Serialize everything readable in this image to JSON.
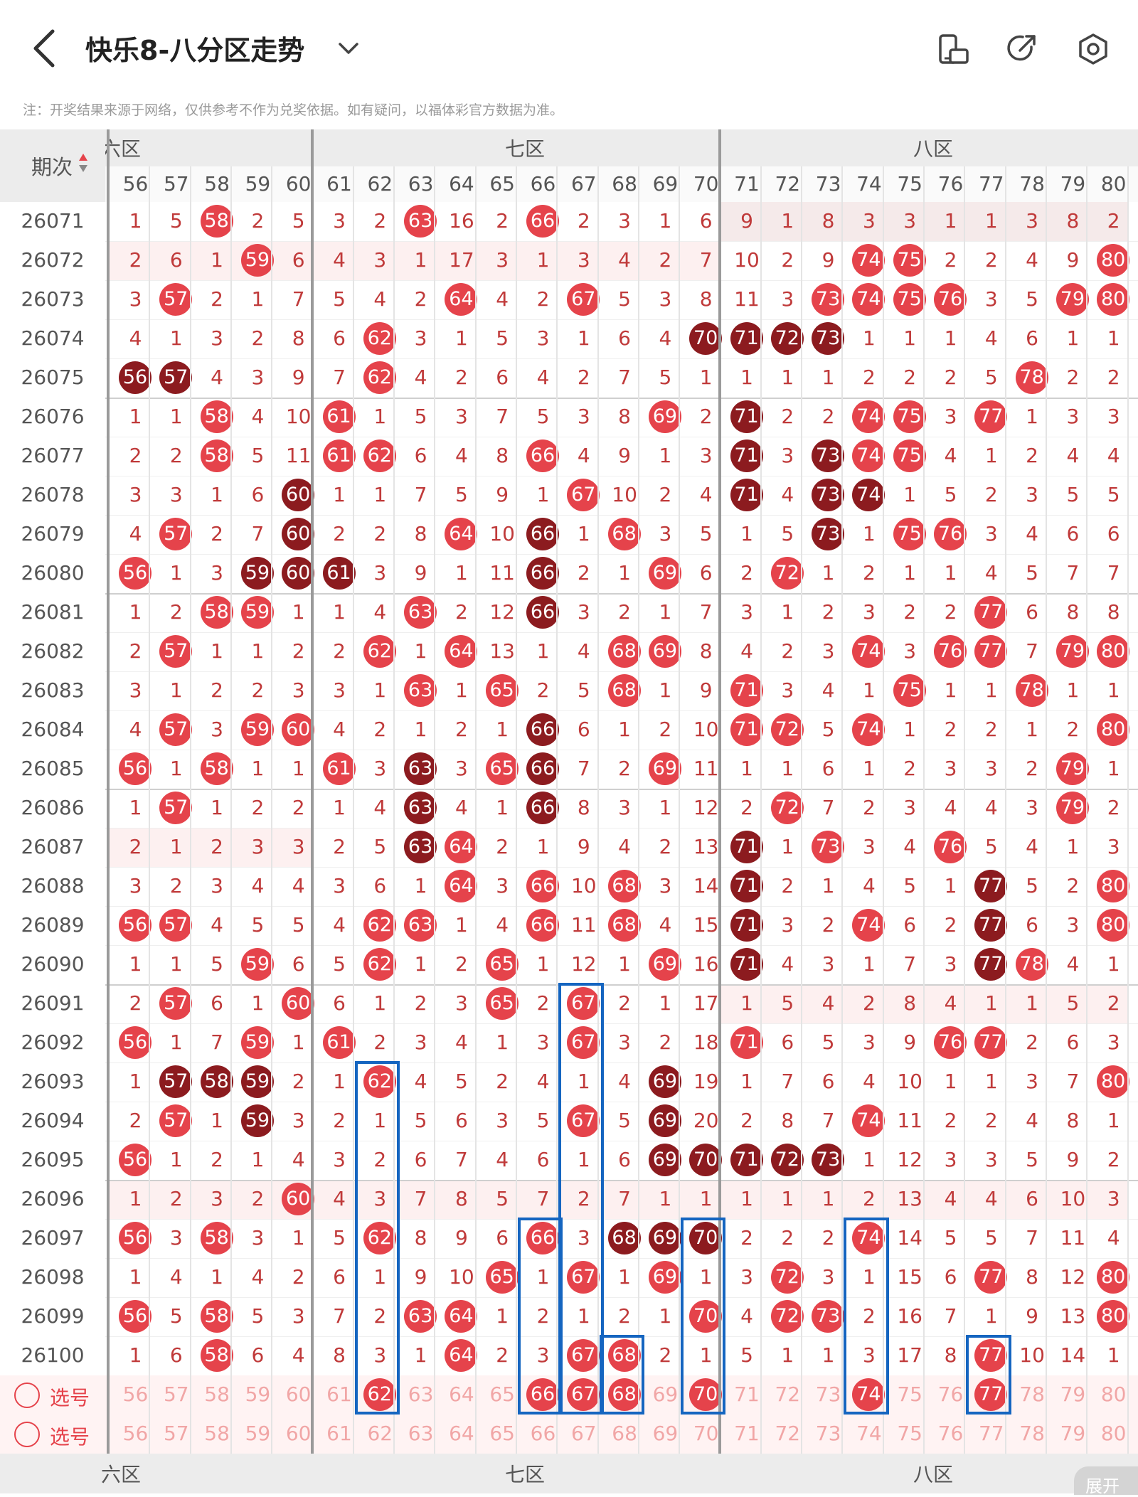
{
  "header": {
    "title": "快乐8-八分区走势",
    "icons": [
      "back-arrow-icon",
      "chevron-down-icon",
      "screen-rotate-icon",
      "share-icon",
      "settings-icon"
    ]
  },
  "note": "注：开奖结果来源于网络，仅供参考不作为兑奖依据。如有疑问，以福体彩官方数据为准。",
  "table": {
    "period_header": "期次",
    "zones": [
      "六区",
      "七区",
      "八区"
    ],
    "zone_top_visible": [
      "六区",
      "七区",
      "八区"
    ],
    "columns": [
      56,
      57,
      58,
      59,
      60,
      61,
      62,
      63,
      64,
      65,
      66,
      67,
      68,
      69,
      70,
      71,
      72,
      73,
      74,
      75,
      76,
      77,
      78,
      79,
      80
    ],
    "rows": [
      {
        "p": "26071",
        "v": [
          "1",
          "5",
          "58",
          "2",
          "5",
          "3",
          "2",
          "63",
          "16",
          "2",
          "66",
          "2",
          "3",
          "1",
          "6",
          "9",
          "1",
          "8",
          "3",
          "3",
          "1",
          "1",
          "3",
          "8",
          "2"
        ]
      },
      {
        "p": "26072",
        "v": [
          "2",
          "6",
          "1",
          "59",
          "6",
          "4",
          "3",
          "1",
          "17",
          "3",
          "1",
          "3",
          "4",
          "2",
          "7",
          "10",
          "2",
          "9",
          "74",
          "75",
          "2",
          "2",
          "4",
          "9",
          "80"
        ]
      },
      {
        "p": "26073",
        "v": [
          "3",
          "57",
          "2",
          "1",
          "7",
          "5",
          "4",
          "2",
          "64",
          "4",
          "2",
          "67",
          "5",
          "3",
          "8",
          "11",
          "3",
          "73",
          "74",
          "75",
          "76",
          "3",
          "5",
          "79",
          "80"
        ]
      },
      {
        "p": "26074",
        "v": [
          "4",
          "1",
          "3",
          "2",
          "8",
          "6",
          "62",
          "3",
          "1",
          "5",
          "3",
          "1",
          "6",
          "4",
          "70",
          "71",
          "72",
          "73",
          "1",
          "1",
          "1",
          "4",
          "6",
          "1",
          "1"
        ]
      },
      {
        "p": "26075",
        "v": [
          "56",
          "57",
          "4",
          "3",
          "9",
          "7",
          "62",
          "4",
          "2",
          "6",
          "4",
          "2",
          "7",
          "5",
          "1",
          "1",
          "1",
          "1",
          "2",
          "2",
          "2",
          "5",
          "78",
          "2",
          "2"
        ]
      },
      {
        "p": "26076",
        "v": [
          "1",
          "1",
          "58",
          "4",
          "10",
          "61",
          "1",
          "5",
          "3",
          "7",
          "5",
          "3",
          "8",
          "69",
          "2",
          "71",
          "2",
          "2",
          "74",
          "75",
          "3",
          "77",
          "1",
          "3",
          "3"
        ]
      },
      {
        "p": "26077",
        "v": [
          "2",
          "2",
          "58",
          "5",
          "11",
          "61",
          "62",
          "6",
          "4",
          "8",
          "66",
          "4",
          "9",
          "1",
          "3",
          "71",
          "3",
          "73",
          "74",
          "75",
          "4",
          "1",
          "2",
          "4",
          "4"
        ]
      },
      {
        "p": "26078",
        "v": [
          "3",
          "3",
          "1",
          "6",
          "60",
          "1",
          "1",
          "7",
          "5",
          "9",
          "1",
          "67",
          "10",
          "2",
          "4",
          "71",
          "4",
          "73",
          "74",
          "1",
          "5",
          "2",
          "3",
          "5",
          "5"
        ]
      },
      {
        "p": "26079",
        "v": [
          "4",
          "57",
          "2",
          "7",
          "60",
          "2",
          "2",
          "8",
          "64",
          "10",
          "66",
          "1",
          "68",
          "3",
          "5",
          "1",
          "5",
          "73",
          "1",
          "75",
          "76",
          "3",
          "4",
          "6",
          "6"
        ]
      },
      {
        "p": "26080",
        "v": [
          "56",
          "1",
          "3",
          "59",
          "60",
          "61",
          "3",
          "9",
          "1",
          "11",
          "66",
          "2",
          "1",
          "69",
          "6",
          "2",
          "72",
          "1",
          "2",
          "1",
          "1",
          "4",
          "5",
          "7",
          "7"
        ]
      },
      {
        "p": "26081",
        "v": [
          "1",
          "2",
          "58",
          "59",
          "1",
          "1",
          "4",
          "63",
          "2",
          "12",
          "66",
          "3",
          "2",
          "1",
          "7",
          "3",
          "1",
          "2",
          "3",
          "2",
          "2",
          "77",
          "6",
          "8",
          "8"
        ]
      },
      {
        "p": "26082",
        "v": [
          "2",
          "57",
          "1",
          "1",
          "2",
          "2",
          "62",
          "1",
          "64",
          "13",
          "1",
          "4",
          "68",
          "69",
          "8",
          "4",
          "2",
          "3",
          "74",
          "3",
          "76",
          "77",
          "7",
          "79",
          "80"
        ]
      },
      {
        "p": "26083",
        "v": [
          "3",
          "1",
          "2",
          "2",
          "3",
          "3",
          "1",
          "63",
          "1",
          "65",
          "2",
          "5",
          "68",
          "1",
          "9",
          "71",
          "3",
          "4",
          "1",
          "75",
          "1",
          "1",
          "78",
          "1",
          "1"
        ]
      },
      {
        "p": "26084",
        "v": [
          "4",
          "57",
          "3",
          "59",
          "60",
          "4",
          "2",
          "1",
          "2",
          "1",
          "66",
          "6",
          "1",
          "2",
          "10",
          "71",
          "72",
          "5",
          "74",
          "1",
          "2",
          "2",
          "1",
          "2",
          "80"
        ]
      },
      {
        "p": "26085",
        "v": [
          "56",
          "1",
          "58",
          "1",
          "1",
          "61",
          "3",
          "63",
          "3",
          "65",
          "66",
          "7",
          "2",
          "69",
          "11",
          "1",
          "1",
          "6",
          "1",
          "2",
          "3",
          "3",
          "2",
          "79",
          "1"
        ]
      },
      {
        "p": "26086",
        "v": [
          "1",
          "57",
          "1",
          "2",
          "2",
          "1",
          "4",
          "63",
          "4",
          "1",
          "66",
          "8",
          "3",
          "1",
          "12",
          "2",
          "72",
          "7",
          "2",
          "3",
          "4",
          "4",
          "3",
          "79",
          "2"
        ]
      },
      {
        "p": "26087",
        "v": [
          "2",
          "1",
          "2",
          "3",
          "3",
          "2",
          "5",
          "63",
          "64",
          "2",
          "1",
          "9",
          "4",
          "2",
          "13",
          "71",
          "1",
          "73",
          "3",
          "4",
          "76",
          "5",
          "4",
          "1",
          "3"
        ]
      },
      {
        "p": "26088",
        "v": [
          "3",
          "2",
          "3",
          "4",
          "4",
          "3",
          "6",
          "1",
          "64",
          "3",
          "66",
          "10",
          "68",
          "3",
          "14",
          "71",
          "2",
          "1",
          "4",
          "5",
          "1",
          "77",
          "5",
          "2",
          "80"
        ]
      },
      {
        "p": "26089",
        "v": [
          "56",
          "57",
          "4",
          "5",
          "5",
          "4",
          "62",
          "63",
          "1",
          "4",
          "66",
          "11",
          "68",
          "4",
          "15",
          "71",
          "3",
          "2",
          "74",
          "6",
          "2",
          "77",
          "6",
          "3",
          "80"
        ]
      },
      {
        "p": "26090",
        "v": [
          "1",
          "1",
          "5",
          "59",
          "6",
          "5",
          "62",
          "1",
          "2",
          "65",
          "1",
          "12",
          "1",
          "69",
          "16",
          "71",
          "4",
          "3",
          "1",
          "7",
          "3",
          "77",
          "78",
          "4",
          "1"
        ]
      },
      {
        "p": "26091",
        "v": [
          "2",
          "57",
          "6",
          "1",
          "60",
          "6",
          "1",
          "2",
          "3",
          "65",
          "2",
          "67",
          "2",
          "1",
          "17",
          "1",
          "5",
          "4",
          "2",
          "8",
          "4",
          "1",
          "1",
          "5",
          "2"
        ]
      },
      {
        "p": "26092",
        "v": [
          "56",
          "1",
          "7",
          "59",
          "1",
          "61",
          "2",
          "3",
          "4",
          "1",
          "3",
          "67",
          "3",
          "2",
          "18",
          "71",
          "6",
          "5",
          "3",
          "9",
          "76",
          "77",
          "2",
          "6",
          "3"
        ]
      },
      {
        "p": "26093",
        "v": [
          "1",
          "57",
          "58",
          "59",
          "2",
          "1",
          "62",
          "4",
          "5",
          "2",
          "4",
          "1",
          "4",
          "69",
          "19",
          "1",
          "7",
          "6",
          "4",
          "10",
          "1",
          "1",
          "3",
          "7",
          "80"
        ]
      },
      {
        "p": "26094",
        "v": [
          "2",
          "57",
          "1",
          "59",
          "3",
          "2",
          "1",
          "5",
          "6",
          "3",
          "5",
          "67",
          "5",
          "69",
          "20",
          "2",
          "8",
          "7",
          "74",
          "11",
          "2",
          "2",
          "4",
          "8",
          "1"
        ]
      },
      {
        "p": "26095",
        "v": [
          "56",
          "1",
          "2",
          "1",
          "4",
          "3",
          "2",
          "6",
          "7",
          "4",
          "6",
          "1",
          "6",
          "69",
          "70",
          "71",
          "72",
          "73",
          "1",
          "12",
          "3",
          "3",
          "5",
          "9",
          "2"
        ]
      },
      {
        "p": "26096",
        "v": [
          "1",
          "2",
          "3",
          "2",
          "60",
          "4",
          "3",
          "7",
          "8",
          "5",
          "7",
          "2",
          "7",
          "1",
          "1",
          "1",
          "1",
          "1",
          "2",
          "13",
          "4",
          "4",
          "6",
          "10",
          "3"
        ]
      },
      {
        "p": "26097",
        "v": [
          "56",
          "3",
          "58",
          "3",
          "1",
          "5",
          "62",
          "8",
          "9",
          "6",
          "66",
          "3",
          "68",
          "69",
          "70",
          "2",
          "2",
          "2",
          "74",
          "14",
          "5",
          "5",
          "7",
          "11",
          "4"
        ]
      },
      {
        "p": "26098",
        "v": [
          "1",
          "4",
          "1",
          "4",
          "2",
          "6",
          "1",
          "9",
          "10",
          "65",
          "1",
          "67",
          "1",
          "69",
          "1",
          "3",
          "72",
          "3",
          "1",
          "15",
          "6",
          "77",
          "8",
          "12",
          "80"
        ]
      },
      {
        "p": "26099",
        "v": [
          "56",
          "5",
          "58",
          "5",
          "3",
          "7",
          "2",
          "63",
          "64",
          "1",
          "2",
          "1",
          "2",
          "1",
          "70",
          "4",
          "72",
          "73",
          "2",
          "16",
          "7",
          "1",
          "9",
          "13",
          "80"
        ]
      },
      {
        "p": "26100",
        "v": [
          "1",
          "6",
          "58",
          "6",
          "4",
          "8",
          "3",
          "1",
          "64",
          "2",
          "3",
          "67",
          "68",
          "2",
          "1",
          "5",
          "1",
          "1",
          "3",
          "17",
          "8",
          "77",
          "10",
          "14",
          "1"
        ]
      }
    ],
    "dark_balls": {
      "26074": [
        "70",
        "71",
        "72",
        "73"
      ],
      "26075": [
        "56",
        "57"
      ],
      "26076": [
        "71"
      ],
      "26077": [
        "71",
        "73"
      ],
      "26078": [
        "60",
        "71",
        "73",
        "74"
      ],
      "26079": [
        "60",
        "66",
        "73"
      ],
      "26080": [
        "59",
        "60",
        "61",
        "66"
      ],
      "26081": [
        "66"
      ],
      "26084": [
        "66"
      ],
      "26085": [
        "63",
        "66"
      ],
      "26086": [
        "63",
        "66"
      ],
      "26087": [
        "63",
        "71"
      ],
      "26088": [
        "71",
        "77"
      ],
      "26089": [
        "71",
        "77"
      ],
      "26090": [
        "71",
        "77"
      ],
      "26093": [
        "57",
        "58",
        "59",
        "69"
      ],
      "26094": [
        "59",
        "69"
      ],
      "26095": [
        "69",
        "70",
        "71",
        "72",
        "73"
      ],
      "26097": [
        "68",
        "69",
        "70"
      ]
    },
    "select_rows": [
      {
        "label": "选号",
        "selected": [
          "62",
          "66",
          "67",
          "68",
          "70",
          "74",
          "77"
        ]
      },
      {
        "label": "选号",
        "selected": []
      }
    ],
    "expand_label": "展开"
  }
}
